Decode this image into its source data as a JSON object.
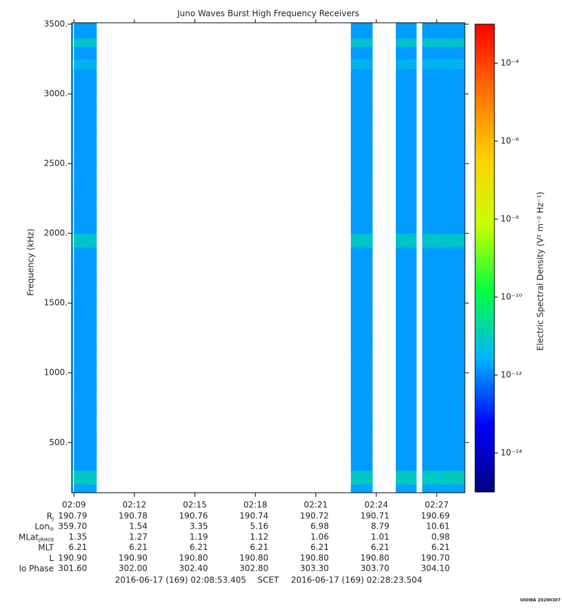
{
  "chart_data": {
    "type": "spectrogram",
    "title": "Juno Waves Burst High Frequency Receivers",
    "ylabel": "Frequency (kHz)",
    "ylim": [
      140,
      3510
    ],
    "yticks": [
      {
        "value": 500,
        "label": "500."
      },
      {
        "value": 1000,
        "label": "1000."
      },
      {
        "value": 1500,
        "label": "1500."
      },
      {
        "value": 2000,
        "label": "2000."
      },
      {
        "value": 2500,
        "label": "2500."
      },
      {
        "value": 3000,
        "label": "3000."
      },
      {
        "value": 3500,
        "label": "3500."
      }
    ],
    "xlim": [
      8.889,
      28.392
    ],
    "xticks": [
      {
        "value": 9,
        "label": "02:09"
      },
      {
        "value": 12,
        "label": "02:12"
      },
      {
        "value": 15,
        "label": "02:15"
      },
      {
        "value": 18,
        "label": "02:18"
      },
      {
        "value": 21,
        "label": "02:21"
      },
      {
        "value": 24,
        "label": "02:24"
      },
      {
        "value": 27,
        "label": "02:27"
      }
    ],
    "blocks": [
      [
        8.889,
        8.95
      ],
      [
        9.0,
        10.13
      ],
      [
        22.74,
        23.82
      ],
      [
        24.97,
        26.0
      ],
      [
        26.28,
        28.392
      ]
    ],
    "bands": [
      140,
      200,
      300,
      1900,
      2000,
      3180,
      3250,
      3340,
      3400,
      3510
    ],
    "levels": [
      2e-12,
      3e-11,
      1.5e-12,
      2e-11,
      1.5e-12,
      5e-12,
      1.5e-12,
      2e-11,
      1.5e-12
    ],
    "colorbar": {
      "label": "Electric Spectral Density (V² m⁻² Hz⁻¹)",
      "log": true,
      "zlim": [
        1e-15,
        0.001
      ],
      "ticks": [
        {
          "value": 1e-14,
          "label": "10⁻¹⁴"
        },
        {
          "value": 1e-12,
          "label": "10⁻¹²"
        },
        {
          "value": 1e-10,
          "label": "10⁻¹⁰"
        },
        {
          "value": 1e-08,
          "label": "10⁻⁸"
        },
        {
          "value": 1e-06,
          "label": "10⁻⁶"
        },
        {
          "value": 0.0001,
          "label": "10⁻⁴"
        }
      ],
      "colormap": [
        "#000080",
        "#0000ff",
        "#00b4ff",
        "#00ff40",
        "#c8ff00",
        "#ffd000",
        "#ff7000",
        "#ff0000"
      ]
    },
    "ephemeris": [
      {
        "label": "R",
        "sub": "J",
        "values": [
          "190.79",
          "190.78",
          "190.76",
          "190.74",
          "190.72",
          "190.71",
          "190.69"
        ]
      },
      {
        "label": "Lon",
        "sub": "III",
        "values": [
          "359.70",
          "1.54",
          "3.35",
          "5.16",
          "6.98",
          "8.79",
          "10.61"
        ]
      },
      {
        "label": "MLat",
        "sub": "JRM09",
        "values": [
          "1.35",
          "1.27",
          "1.19",
          "1.12",
          "1.06",
          "1.01",
          "0.98"
        ]
      },
      {
        "label": "MLT",
        "values": [
          "6.21",
          "6.21",
          "6.21",
          "6.21",
          "6.21",
          "6.21",
          "6.21"
        ]
      },
      {
        "label": "L",
        "values": [
          "190.90",
          "190.90",
          "190.80",
          "190.80",
          "190.80",
          "190.80",
          "190.70"
        ]
      },
      {
        "label": "Io Phase",
        "values": [
          "301.60",
          "302.00",
          "302.40",
          "302.80",
          "303.30",
          "303.70",
          "304.10"
        ]
      }
    ],
    "start_time": "2016-06-17 (169) 02:08:53.405",
    "time_system": "SCET",
    "end_time": "2016-06-17 (169) 02:28:23.504",
    "credit": "UIOWA 20200307"
  }
}
